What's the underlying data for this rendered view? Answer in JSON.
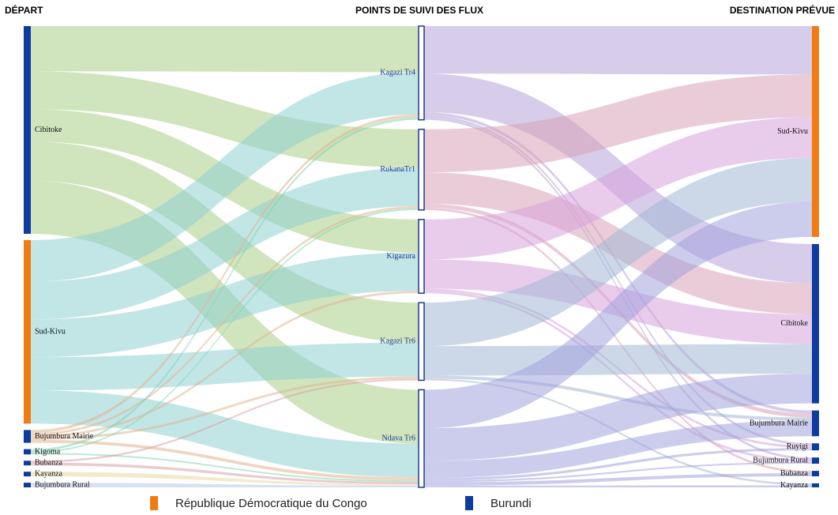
{
  "headers": {
    "left": "DÉPART",
    "center": "POINTS DE SUIVI DES FLUX",
    "right": "DESTINATION PRÉVUE"
  },
  "legend": [
    {
      "label": "République Démocratique du Congo",
      "color": "#f07c13"
    },
    {
      "label": "Burundi",
      "color": "#0d3b9e"
    }
  ],
  "colors": {
    "rdc": "#f07c13",
    "burundi": "#0d3b9e",
    "mid_node_stroke": "#1f3b8c"
  },
  "departure_nodes": [
    {
      "id": "cibitoke",
      "label": "Cibitoke",
      "country": "burundi",
      "flow_color": "#a9cd89"
    },
    {
      "id": "sudkivu",
      "label": "Sud-Kivu",
      "country": "rdc",
      "flow_color": "#8fcfd1"
    },
    {
      "id": "bujmairie",
      "label": "Bujumbura Mairie",
      "country": "burundi",
      "flow_color": "#e0b48f"
    },
    {
      "id": "kigoma",
      "label": "Kigoma",
      "country": "burundi",
      "flow_color": "#7fd6b0"
    },
    {
      "id": "bubanza",
      "label": "Bubanza",
      "country": "burundi",
      "flow_color": "#d9a0a8"
    },
    {
      "id": "kayanza",
      "label": "Kayanza",
      "country": "burundi",
      "flow_color": "#e8d9a0"
    },
    {
      "id": "bujrural",
      "label": "Bujumbura Rural",
      "country": "burundi",
      "flow_color": "#b8c8e8"
    }
  ],
  "checkpoint_nodes": [
    {
      "id": "kagazi4",
      "label": "Kagazi Tr4",
      "out_color": "#b7a3d9"
    },
    {
      "id": "rukana1",
      "label": "RukanaTr1",
      "out_color": "#d9a3b8"
    },
    {
      "id": "kigazura",
      "label": "Kigazura",
      "out_color": "#d7a3dc"
    },
    {
      "id": "kagazi6",
      "label": "Kagazi Tr6",
      "out_color": "#a3b8d6"
    },
    {
      "id": "ndava6",
      "label": "Ndava Tr6",
      "out_color": "#a3a3dc"
    }
  ],
  "destination_nodes": [
    {
      "id": "d_sudkivu",
      "label": "Sud-Kivu",
      "country": "rdc"
    },
    {
      "id": "d_cibitoke",
      "label": "Cibitoke",
      "country": "burundi"
    },
    {
      "id": "d_bujmairie",
      "label": "Bujumbura Mairie",
      "country": "burundi"
    },
    {
      "id": "d_ruyigi",
      "label": "Ruyigi",
      "country": "burundi"
    },
    {
      "id": "d_bujrural",
      "label": "Bujumbura Rural",
      "country": "burundi"
    },
    {
      "id": "d_bubanza",
      "label": "Bubanza",
      "country": "burundi"
    },
    {
      "id": "d_kayanza",
      "label": "Kayanza",
      "country": "burundi"
    }
  ],
  "flows_in": [
    {
      "from": "cibitoke",
      "to": "kagazi4",
      "value": 60
    },
    {
      "from": "cibitoke",
      "to": "rukana1",
      "value": 50
    },
    {
      "from": "cibitoke",
      "to": "kigazura",
      "value": 43
    },
    {
      "from": "cibitoke",
      "to": "kagazi6",
      "value": 52
    },
    {
      "from": "cibitoke",
      "to": "ndava6",
      "value": 70
    },
    {
      "from": "sudkivu",
      "to": "kagazi4",
      "value": 55
    },
    {
      "from": "sudkivu",
      "to": "rukana1",
      "value": 50
    },
    {
      "from": "sudkivu",
      "to": "kigazura",
      "value": 50
    },
    {
      "from": "sudkivu",
      "to": "kagazi6",
      "value": 44
    },
    {
      "from": "sudkivu",
      "to": "ndava6",
      "value": 44
    },
    {
      "from": "bujmairie",
      "to": "kagazi4",
      "value": 4
    },
    {
      "from": "bujmairie",
      "to": "rukana1",
      "value": 3
    },
    {
      "from": "bujmairie",
      "to": "kigazura",
      "value": 3
    },
    {
      "from": "bujmairie",
      "to": "kagazi6",
      "value": 3
    },
    {
      "from": "bujmairie",
      "to": "ndava6",
      "value": 4
    },
    {
      "from": "kigoma",
      "to": "kagazi4",
      "value": 3
    },
    {
      "from": "kigoma",
      "to": "rukana1",
      "value": 2
    },
    {
      "from": "kigoma",
      "to": "ndava6",
      "value": 2
    },
    {
      "from": "bubanza",
      "to": "kagazi6",
      "value": 2
    },
    {
      "from": "bubanza",
      "to": "ndava6",
      "value": 3
    },
    {
      "from": "kayanza",
      "to": "ndava6",
      "value": 2
    },
    {
      "from": "bujrural",
      "to": "ndava6",
      "value": 2
    }
  ],
  "flows_out": [
    {
      "from": "kagazi4",
      "to": "d_sudkivu",
      "value": 62
    },
    {
      "from": "kagazi4",
      "to": "d_cibitoke",
      "value": 50
    },
    {
      "from": "kagazi4",
      "to": "d_bujmairie",
      "value": 4
    },
    {
      "from": "kagazi4",
      "to": "d_ruyigi",
      "value": 3
    },
    {
      "from": "kagazi4",
      "to": "d_bujrural",
      "value": 3
    },
    {
      "from": "rukana1",
      "to": "d_sudkivu",
      "value": 55
    },
    {
      "from": "rukana1",
      "to": "d_cibitoke",
      "value": 40
    },
    {
      "from": "rukana1",
      "to": "d_bujmairie",
      "value": 5
    },
    {
      "from": "rukana1",
      "to": "d_bubanza",
      "value": 3
    },
    {
      "from": "kigazura",
      "to": "d_sudkivu",
      "value": 52
    },
    {
      "from": "kigazura",
      "to": "d_cibitoke",
      "value": 38
    },
    {
      "from": "kigazura",
      "to": "d_bujrural",
      "value": 3
    },
    {
      "from": "kigazura",
      "to": "d_ruyigi",
      "value": 3
    },
    {
      "from": "kagazi6",
      "to": "d_sudkivu",
      "value": 56
    },
    {
      "from": "kagazi6",
      "to": "d_cibitoke",
      "value": 38
    },
    {
      "from": "kagazi6",
      "to": "d_bujmairie",
      "value": 4
    },
    {
      "from": "kagazi6",
      "to": "d_kayanza",
      "value": 2
    },
    {
      "from": "ndava6",
      "to": "d_sudkivu",
      "value": 45
    },
    {
      "from": "ndava6",
      "to": "d_cibitoke",
      "value": 38
    },
    {
      "from": "ndava6",
      "to": "d_bujmairie",
      "value": 20
    },
    {
      "from": "ndava6",
      "to": "d_bubanza",
      "value": 4
    },
    {
      "from": "ndava6",
      "to": "d_bujrural",
      "value": 2
    },
    {
      "from": "ndava6",
      "to": "d_ruyigi",
      "value": 3
    },
    {
      "from": "ndava6",
      "to": "d_kayanza",
      "value": 2
    }
  ]
}
